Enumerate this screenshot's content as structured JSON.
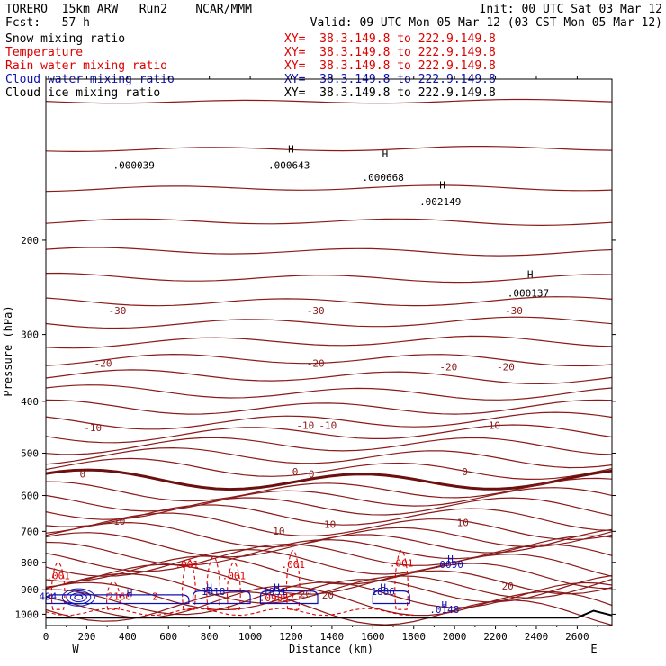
{
  "header": {
    "model": "TORERO  15km ARW   Run2    NCAR/MMM",
    "init": "Init: 00 UTC Sat 03 Mar 12",
    "fcst": "Fcst:   57 h",
    "valid": "Valid: 09 UTC Mon 05 Mar 12 (03 CST Mon 05 Mar 12)"
  },
  "fields": [
    {
      "name": "Snow mixing ratio",
      "xy": "XY=  38.3.149.8 to 222.9.149.8",
      "color": "#000000"
    },
    {
      "name": "Temperature",
      "xy": "XY=  38.3.149.8 to 222.9.149.8",
      "color": "#dd0000"
    },
    {
      "name": "Rain water mixing ratio",
      "xy": "XY=  38.3.149.8 to 222.9.149.8",
      "color": "#dd0000"
    },
    {
      "name": "Cloud water mixing ratio",
      "xy": "XY=  38.3.149.8 to 222.9.149.8",
      "color": "#1010b0"
    },
    {
      "name": "Cloud ice mixing ratio",
      "xy": "XY=  38.3.149.8 to 222.9.149.8",
      "color": "#000000"
    }
  ],
  "chart_data": {
    "type": "cross-section contour",
    "xlabel": "Distance (km)",
    "ylabel": "Pressure (hPa)",
    "xlim": [
      0,
      2770
    ],
    "ylim": [
      1050,
      100
    ],
    "y_scale": "log",
    "x_ticks": [
      0,
      200,
      400,
      600,
      800,
      1000,
      1200,
      1400,
      1600,
      1800,
      2000,
      2200,
      2400,
      2600
    ],
    "x_tick_labels": [
      "0",
      "200",
      "400",
      "600",
      "800",
      "1000",
      "1200",
      "1400",
      "1600",
      "1800",
      "2000",
      "2200",
      "2400",
      "2600"
    ],
    "y_ticks": [
      200,
      300,
      400,
      500,
      600,
      700,
      800,
      900,
      1000
    ],
    "y_tick_labels": [
      "200",
      "300",
      "400",
      "500",
      "600",
      "700",
      "800",
      "900",
      "1000"
    ],
    "left_end_label": "W",
    "right_end_label": "E",
    "temperature_labels": [
      {
        "text": "-30",
        "x": 350,
        "p": 275
      },
      {
        "text": "-30",
        "x": 1320,
        "p": 275
      },
      {
        "text": "-30",
        "x": 2290,
        "p": 275
      },
      {
        "text": "-20",
        "x": 280,
        "p": 345
      },
      {
        "text": "-20",
        "x": 1320,
        "p": 345
      },
      {
        "text": "-20",
        "x": 1970,
        "p": 350
      },
      {
        "text": "-20",
        "x": 2250,
        "p": 350
      },
      {
        "text": "-10",
        "x": 230,
        "p": 455
      },
      {
        "text": "-10",
        "x": 1270,
        "p": 450
      },
      {
        "text": "-10",
        "x": 1380,
        "p": 450
      },
      {
        "text": "-10",
        "x": 2180,
        "p": 450
      },
      {
        "text": "0",
        "x": 180,
        "p": 555
      },
      {
        "text": "0",
        "x": 1220,
        "p": 550
      },
      {
        "text": "0",
        "x": 1300,
        "p": 555
      },
      {
        "text": "0",
        "x": 2050,
        "p": 550
      },
      {
        "text": "10",
        "x": 360,
        "p": 680
      },
      {
        "text": "10",
        "x": 1140,
        "p": 710
      },
      {
        "text": "10",
        "x": 1390,
        "p": 690
      },
      {
        "text": "10",
        "x": 2040,
        "p": 685
      },
      {
        "text": "20",
        "x": 1270,
        "p": 930
      },
      {
        "text": "20",
        "x": 1380,
        "p": 935
      },
      {
        "text": "20",
        "x": 2260,
        "p": 900
      }
    ],
    "snow_labels": [
      {
        "text": "H",
        "x": 1200,
        "p": 137
      },
      {
        "text": ".000643",
        "x": 1190,
        "p": 147
      },
      {
        "text": "H",
        "x": 1660,
        "p": 140
      },
      {
        "text": ".000668",
        "x": 1650,
        "p": 155
      },
      {
        "text": "H",
        "x": 1940,
        "p": 160
      },
      {
        "text": ".002149",
        "x": 1930,
        "p": 172
      },
      {
        "text": "H",
        "x": 2370,
        "p": 235
      },
      {
        "text": ".000137",
        "x": 2360,
        "p": 255
      },
      {
        "text": ".000039",
        "x": 430,
        "p": 147
      }
    ],
    "rain_labels": [
      {
        "text": ".001",
        "x": 60,
        "p": 860
      },
      {
        "text": ".001",
        "x": 690,
        "p": 820
      },
      {
        "text": ".001",
        "x": 920,
        "p": 860
      },
      {
        "text": ".001",
        "x": 1210,
        "p": 820
      },
      {
        "text": ".001",
        "x": 1740,
        "p": 815
      },
      {
        "text": ".09857",
        "x": 1130,
        "p": 945
      },
      {
        "text": "2160",
        "x": 360,
        "p": 940
      },
      {
        "text": "2",
        "x": 535,
        "p": 940
      }
    ],
    "cloud_labels": [
      {
        "text": "H",
        "x": 1980,
        "p": 800
      },
      {
        "text": ".0090",
        "x": 1970,
        "p": 820
      },
      {
        "text": "H",
        "x": 800,
        "p": 905
      },
      {
        "text": "1818",
        "x": 820,
        "p": 920
      },
      {
        "text": "H",
        "x": 1130,
        "p": 905
      },
      {
        "text": "1831",
        "x": 1120,
        "p": 920
      },
      {
        "text": "H",
        "x": 1650,
        "p": 905
      },
      {
        "text": "1886",
        "x": 1650,
        "p": 920
      },
      {
        "text": "H",
        "x": 410,
        "p": 925
      },
      {
        "text": "H",
        "x": 1950,
        "p": 975
      },
      {
        "text": ".0148",
        "x": 1950,
        "p": 995
      },
      {
        "text": "494",
        "x": 10,
        "p": 940
      }
    ]
  }
}
